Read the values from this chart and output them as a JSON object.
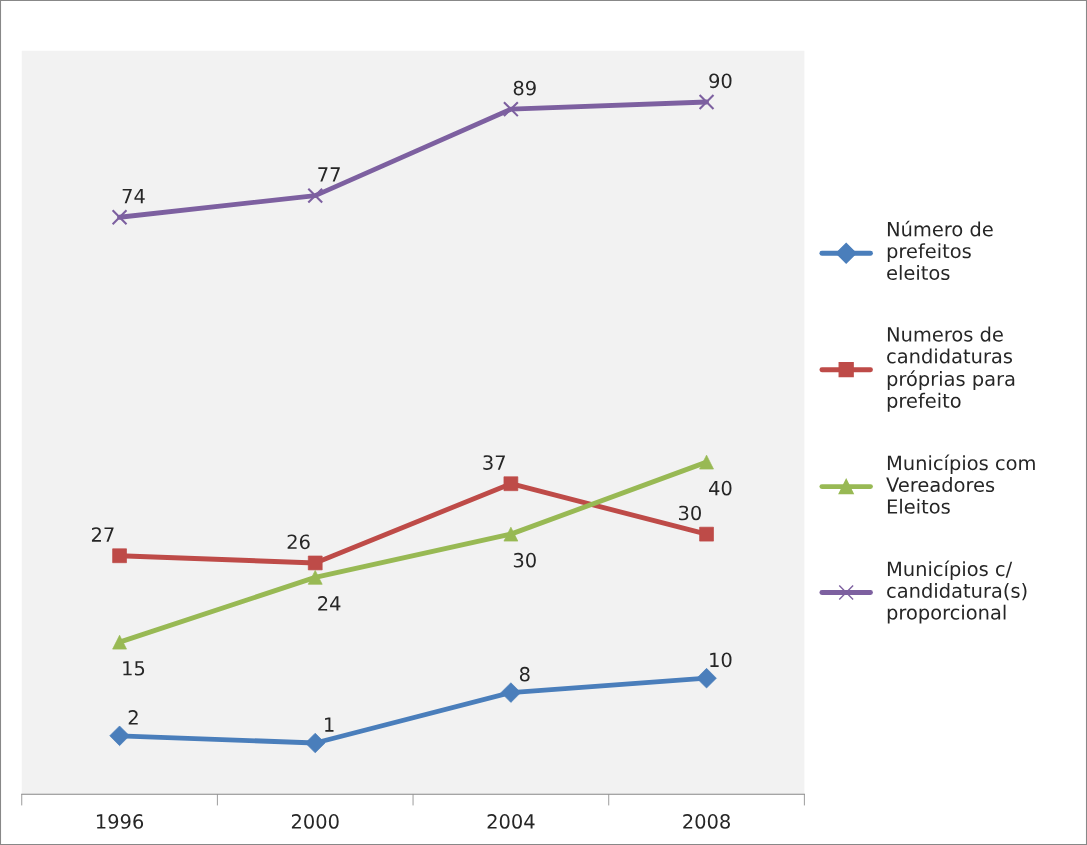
{
  "chart_data": {
    "type": "line",
    "categories": [
      "1996",
      "2000",
      "2004",
      "2008"
    ],
    "series": [
      {
        "name": "Número de prefeitos eleitos",
        "color": "#4a7ebb",
        "marker": "diamond",
        "values": [
          2,
          1,
          8,
          10
        ]
      },
      {
        "name": "Numeros de candidaturas próprias para prefeito",
        "color": "#be4b48",
        "marker": "square",
        "values": [
          27,
          26,
          37,
          30
        ]
      },
      {
        "name": "Municípios com Vereadores Eleitos",
        "color": "#98b954",
        "marker": "triangle",
        "values": [
          15,
          24,
          30,
          40
        ]
      },
      {
        "name": "Municípios c/ candidatura(s) proporcional",
        "color": "#7d60a0",
        "marker": "cross",
        "values": [
          74,
          77,
          89,
          90
        ]
      }
    ],
    "data_labels": true,
    "grid": false,
    "legend": "right"
  }
}
